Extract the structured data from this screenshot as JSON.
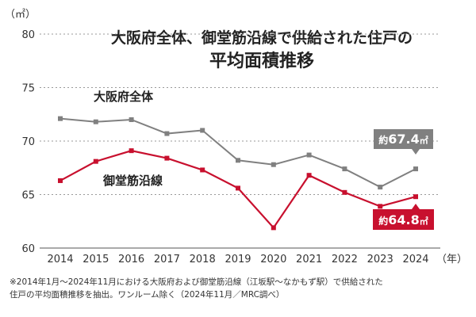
{
  "chart_data": {
    "type": "line",
    "title_lines": [
      "大阪府全体、御堂筋沿線で供給された住戸の",
      "平均面積推移"
    ],
    "y_unit": "（㎡）",
    "x_unit": "（年）",
    "ylim": [
      60,
      80
    ],
    "y_ticks": [
      "80",
      "75",
      "70",
      "65",
      "60"
    ],
    "grid": "dashed-horizontal",
    "categories": [
      "2014",
      "2015",
      "2016",
      "2017",
      "2018",
      "2019",
      "2020",
      "2021",
      "2022",
      "2023",
      "2024"
    ],
    "series": [
      {
        "name": "大阪府全体",
        "color": "#808080",
        "values": [
          72.1,
          71.8,
          72.0,
          70.7,
          71.0,
          68.2,
          67.8,
          68.7,
          67.4,
          65.7,
          67.4
        ]
      },
      {
        "name": "御堂筋沿線",
        "color": "#c8102e",
        "values": [
          66.3,
          68.1,
          69.1,
          68.4,
          67.3,
          65.6,
          61.9,
          66.8,
          65.2,
          63.9,
          64.8
        ]
      }
    ],
    "callouts": [
      {
        "prefix": "約",
        "number": "67.4",
        "unit": "㎡",
        "color": "#808080"
      },
      {
        "prefix": "約",
        "number": "64.8",
        "unit": "㎡",
        "color": "#c8102e"
      }
    ]
  },
  "footnote": {
    "line1": "※2014年1月～2024年11月における大阪府および御堂筋沿線（江坂駅～なかもず駅）で供給された",
    "line2": "住戸の平均面積推移を抽出。ワンルーム除く（2024年11月／MRC調べ）"
  }
}
